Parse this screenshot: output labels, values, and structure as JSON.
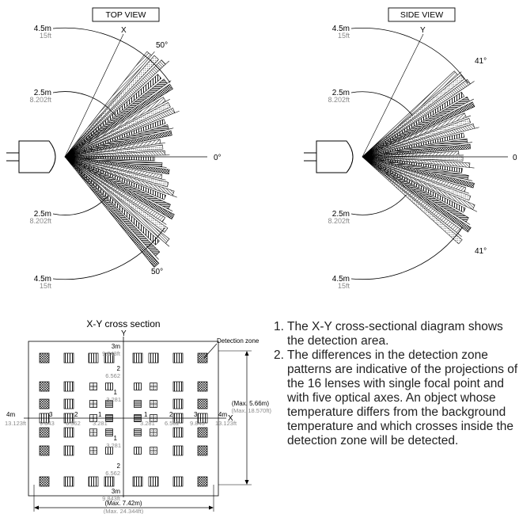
{
  "top_view": {
    "title": "TOP VIEW",
    "axis_label": "X",
    "upper_angle": "50°",
    "lower_angle": "50°",
    "center_angle": "0°",
    "dist_outer_m": "4.5m",
    "dist_outer_ft": "15ft",
    "dist_inner_m": "2.5m",
    "dist_inner_ft": "8.202ft",
    "dist_inner_m_lower": "2.5m",
    "dist_inner_ft_lower": "8.202ft",
    "dist_outer_m_lower": "4.5m",
    "dist_outer_ft_lower": "15ft"
  },
  "side_view": {
    "title": "SIDE VIEW",
    "axis_label": "Y",
    "upper_angle": "41°",
    "lower_angle": "41°",
    "center_angle": "0",
    "dist_outer_m": "4.5m",
    "dist_outer_ft": "15ft",
    "dist_inner_m": "2.5m",
    "dist_inner_ft": "8.202ft",
    "dist_inner_m_lower": "2.5m",
    "dist_inner_ft_lower": "8.202ft",
    "dist_outer_m_lower": "4.5m",
    "dist_outer_ft_lower": "15ft"
  },
  "cross_section": {
    "title": "X-Y cross section",
    "y_label": "Y",
    "x_label": "X",
    "detection_zone": "Detection zone",
    "y_3m": "3m",
    "y_3m_ft": "9.843ft",
    "y_2": "2",
    "y_2_ft": "6.562",
    "y_1": "1",
    "y_1_ft": "3.281",
    "y_m1": "1",
    "y_m1_ft": "3.281",
    "y_m2": "2",
    "y_m2_ft": "6.562",
    "y_m3m": "3m",
    "y_m3m_ft": "9.843ft",
    "x_left_4m": "4m",
    "x_left_4m_ft": "13.123ft",
    "x_left_3": "3",
    "x_left_3_ft": "9.843",
    "x_left_2": "2",
    "x_left_2_ft": "6.562",
    "x_left_1": "1",
    "x_left_1_ft": "3.281",
    "x_right_1": "1",
    "x_right_1_ft": "3.281",
    "x_right_2": "2",
    "x_right_2_ft": "6.562",
    "x_right_3": "3",
    "x_right_3_ft": "9.843",
    "x_right_4m": "4m",
    "x_right_4m_ft": "13.123ft",
    "max_h_m": "(Max. 5.66m)",
    "max_h_ft": "(Max. 18.570ft)",
    "max_w_m": "(Max. 7.42m)",
    "max_w_ft": "(Max. 24.344ft)"
  },
  "notes": [
    {
      "num": "1.",
      "text": "The X-Y cross-sectional diagram shows the detection area."
    },
    {
      "num": "2.",
      "text": "The differences in the detection zone patterns are indicative of the projections of the 16 lenses with single focal point and with five optical axes. An object whose temperature differs from the background temperature and which crosses inside the detection zone will be detected."
    }
  ]
}
